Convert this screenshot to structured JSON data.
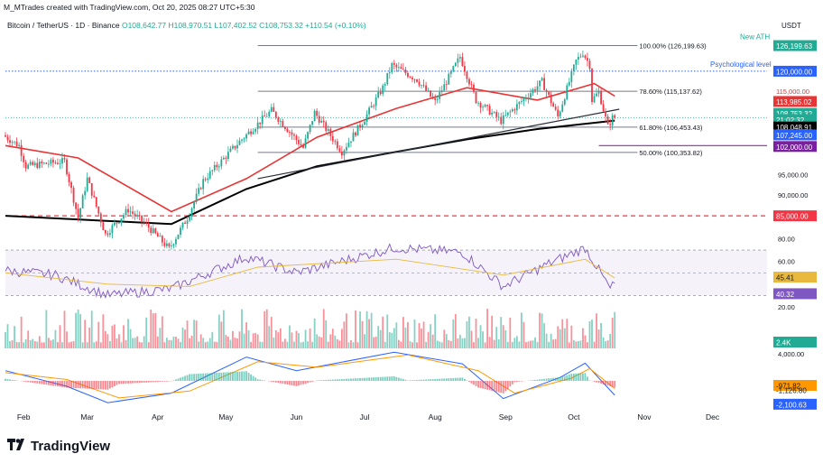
{
  "header": {
    "creator_line": "M_MTrades created with TradingView.com, Oct 20, 2025 08:27 UTC+5:30",
    "symbol": "Bitcoin / TetherUS · 1D · Binance",
    "ohlc": "O108,642.77  H108,970.51  L107,402.52  C108,753.32  +110.54 (+0.10%)"
  },
  "brand": {
    "name": "TradingView",
    "logo": "tradingview-logo"
  },
  "colors": {
    "up": "#22ab94",
    "down": "#f23645",
    "ma50": "#e83434",
    "ma200": "#000000",
    "rsi": "#7e57c2",
    "rsi_ma": "#e8b93c",
    "macd": "#2962ff",
    "signal": "#ff9800",
    "purple_line": "#9c27b0",
    "blue_dotted": "#2962ff"
  },
  "chart_data": [
    {
      "type": "candlestick",
      "title": "",
      "currency_label": "USDT",
      "x_ticks": [
        "Feb",
        "Mar",
        "Apr",
        "May",
        "Jun",
        "Jul",
        "Aug",
        "Sep",
        "Oct",
        "Nov",
        "Dec"
      ],
      "y_ticks": [
        95000,
        90000
      ],
      "y_tick_labels": [
        "95,000.00",
        "90,000.00"
      ],
      "ylim": [
        80000,
        128500
      ],
      "grid": false,
      "price_path": [
        [
          "2025-01-24",
          104500
        ],
        [
          "2025-01-31",
          102000
        ],
        [
          "2025-02-03",
          97000
        ],
        [
          "2025-02-10",
          97500
        ],
        [
          "2025-02-20",
          98200
        ],
        [
          "2025-02-26",
          84500
        ],
        [
          "2025-03-02",
          94000
        ],
        [
          "2025-03-10",
          80500
        ],
        [
          "2025-03-20",
          86500
        ],
        [
          "2025-03-28",
          82800
        ],
        [
          "2025-04-07",
          77000
        ],
        [
          "2025-04-15",
          84500
        ],
        [
          "2025-04-22",
          93500
        ],
        [
          "2025-05-08",
          103000
        ],
        [
          "2025-05-22",
          110500
        ],
        [
          "2025-06-05",
          101500
        ],
        [
          "2025-06-10",
          110000
        ],
        [
          "2025-06-22",
          100500
        ],
        [
          "2025-07-02",
          108500
        ],
        [
          "2025-07-10",
          116000
        ],
        [
          "2025-07-14",
          121500
        ],
        [
          "2025-07-25",
          118000
        ],
        [
          "2025-08-02",
          112500
        ],
        [
          "2025-08-13",
          123500
        ],
        [
          "2025-08-20",
          113000
        ],
        [
          "2025-08-31",
          108000
        ],
        [
          "2025-09-18",
          117500
        ],
        [
          "2025-09-25",
          109000
        ],
        [
          "2025-10-03",
          122500
        ],
        [
          "2025-10-06",
          124500
        ],
        [
          "2025-10-09",
          121500
        ],
        [
          "2025-10-10",
          113000
        ],
        [
          "2025-10-13",
          115000
        ],
        [
          "2025-10-17",
          106500
        ],
        [
          "2025-10-19",
          108753
        ]
      ],
      "series": [
        {
          "name": "",
          "values_dates": [
            "2025-01-24",
            "2025-02-25",
            "2025-04-07",
            "2025-05-10",
            "2025-06-10",
            "2025-07-15",
            "2025-08-15",
            "2025-09-15",
            "2025-10-10",
            "2025-10-19"
          ],
          "values": [
            102000,
            99000,
            86000,
            94000,
            104000,
            111000,
            116000,
            113000,
            117000,
            113985
          ]
        },
        {
          "name": "",
          "values_dates": [
            "2025-01-24",
            "2025-04-07",
            "2025-05-10",
            "2025-06-10",
            "2025-07-15",
            "2025-08-15",
            "2025-09-15",
            "2025-10-19"
          ],
          "values": [
            85000,
            83000,
            91500,
            97000,
            100500,
            103500,
            106000,
            108049
          ]
        }
      ],
      "trendline": {
        "from": [
          "2025-05-15",
          94000
        ],
        "to": [
          "2025-10-21",
          110800
        ]
      },
      "fib_levels": [
        {
          "label": "100.00% (126,199.63)",
          "value": 126199.63
        },
        {
          "label": "78.60% (115,137.62)",
          "value": 115137.62
        },
        {
          "label": "61.80% (106,453.43)",
          "value": 106453.43
        },
        {
          "label": "50.00% (100,353.82)",
          "value": 100353.82
        }
      ],
      "annotations": [
        {
          "text": "New ATH",
          "value": 126199.63
        },
        {
          "text": "Psychological level",
          "value": 120000
        }
      ],
      "horizontal_lines": [
        {
          "value": 120000
        },
        {
          "value": 85000
        },
        {
          "value": 102000
        }
      ],
      "price_labels": [
        {
          "text": "126,199.63",
          "value": 126199.63,
          "color": "#22ab94"
        },
        {
          "text": "120,000.00",
          "value": 120000,
          "color": "#2962ff"
        },
        {
          "text": "115,000.00",
          "value": 115000,
          "color": "#e83434"
        },
        {
          "text": "113,985.02",
          "value": 113985.02,
          "color": "#e83434"
        },
        {
          "text": "108,753.32",
          "value": 108753.32,
          "color": "#22ab94"
        },
        {
          "text": "21:02:32",
          "value": null,
          "color": "#22ab94"
        },
        {
          "text": "108,048.91",
          "value": 108048.91,
          "color": "#000000"
        },
        {
          "text": "107,245.00",
          "value": 107245,
          "color": "#2962ff"
        },
        {
          "text": "102,000.00",
          "value": 102000,
          "color": "#7b1fa2"
        },
        {
          "text": "85,000.00",
          "value": 85000,
          "color": "#f23645"
        }
      ]
    },
    {
      "type": "line",
      "title": "",
      "y_ticks": [
        80,
        60,
        20
      ],
      "y_tick_labels": [
        "80.00",
        "60.00",
        "20.00"
      ],
      "ylim": [
        20,
        82
      ],
      "band": [
        30,
        70
      ],
      "series": [
        {
          "name": "",
          "values_dates": [
            "2025-01-24",
            "2025-02-15",
            "2025-03-10",
            "2025-04-07",
            "2025-05-10",
            "2025-06-01",
            "2025-07-14",
            "2025-08-13",
            "2025-08-31",
            "2025-09-20",
            "2025-10-06",
            "2025-10-17",
            "2025-10-19"
          ],
          "values": [
            52,
            48,
            30,
            36,
            64,
            50,
            72,
            68,
            38,
            58,
            72,
            36,
            40.32
          ]
        },
        {
          "name": "",
          "values_dates": [
            "2025-01-24",
            "2025-03-10",
            "2025-04-15",
            "2025-05-15",
            "2025-07-15",
            "2025-08-31",
            "2025-10-06",
            "2025-10-19"
          ],
          "values": [
            50,
            40,
            38,
            55,
            62,
            48,
            62,
            45.41
          ]
        }
      ],
      "price_labels": [
        {
          "text": "45.41",
          "value": 45.41,
          "color": "#e8b93c"
        },
        {
          "text": "40.32",
          "value": 40.32,
          "color": "#7e57c2"
        }
      ]
    },
    {
      "type": "bar",
      "title": "",
      "price_labels": [
        {
          "text": "2.4K",
          "color": "#22ab94"
        }
      ]
    },
    {
      "type": "line",
      "title": "",
      "y_ticks": [
        4000
      ],
      "y_tick_labels": [
        "4,000.00"
      ],
      "ylim": [
        -4500,
        4500
      ],
      "series": [
        {
          "name": "",
          "values_dates": [
            "2025-01-24",
            "2025-02-20",
            "2025-03-10",
            "2025-04-07",
            "2025-05-10",
            "2025-06-01",
            "2025-07-14",
            "2025-08-13",
            "2025-08-31",
            "2025-09-25",
            "2025-10-06",
            "2025-10-19"
          ],
          "values": [
            1500,
            -800,
            -3200,
            -1800,
            3500,
            1500,
            4200,
            2500,
            -2600,
            500,
            2600,
            -2100.63
          ]
        },
        {
          "name": "",
          "values_dates": [
            "2025-01-24",
            "2025-02-20",
            "2025-03-15",
            "2025-04-15",
            "2025-05-15",
            "2025-06-10",
            "2025-07-20",
            "2025-08-20",
            "2025-09-05",
            "2025-09-30",
            "2025-10-08",
            "2025-10-19"
          ],
          "values": [
            1200,
            200,
            -2500,
            -1500,
            2800,
            2000,
            3800,
            1500,
            -1800,
            400,
            1800,
            -1126.8
          ]
        }
      ],
      "price_labels": [
        {
          "text": "-971.82",
          "value": -971.82,
          "color": "#ff9800"
        },
        {
          "text": "-1,126.80",
          "value": -1126.8,
          "color": "#ffffff"
        },
        {
          "text": "-2,100.63",
          "value": -2100.63,
          "color": "#2962ff"
        }
      ]
    }
  ]
}
